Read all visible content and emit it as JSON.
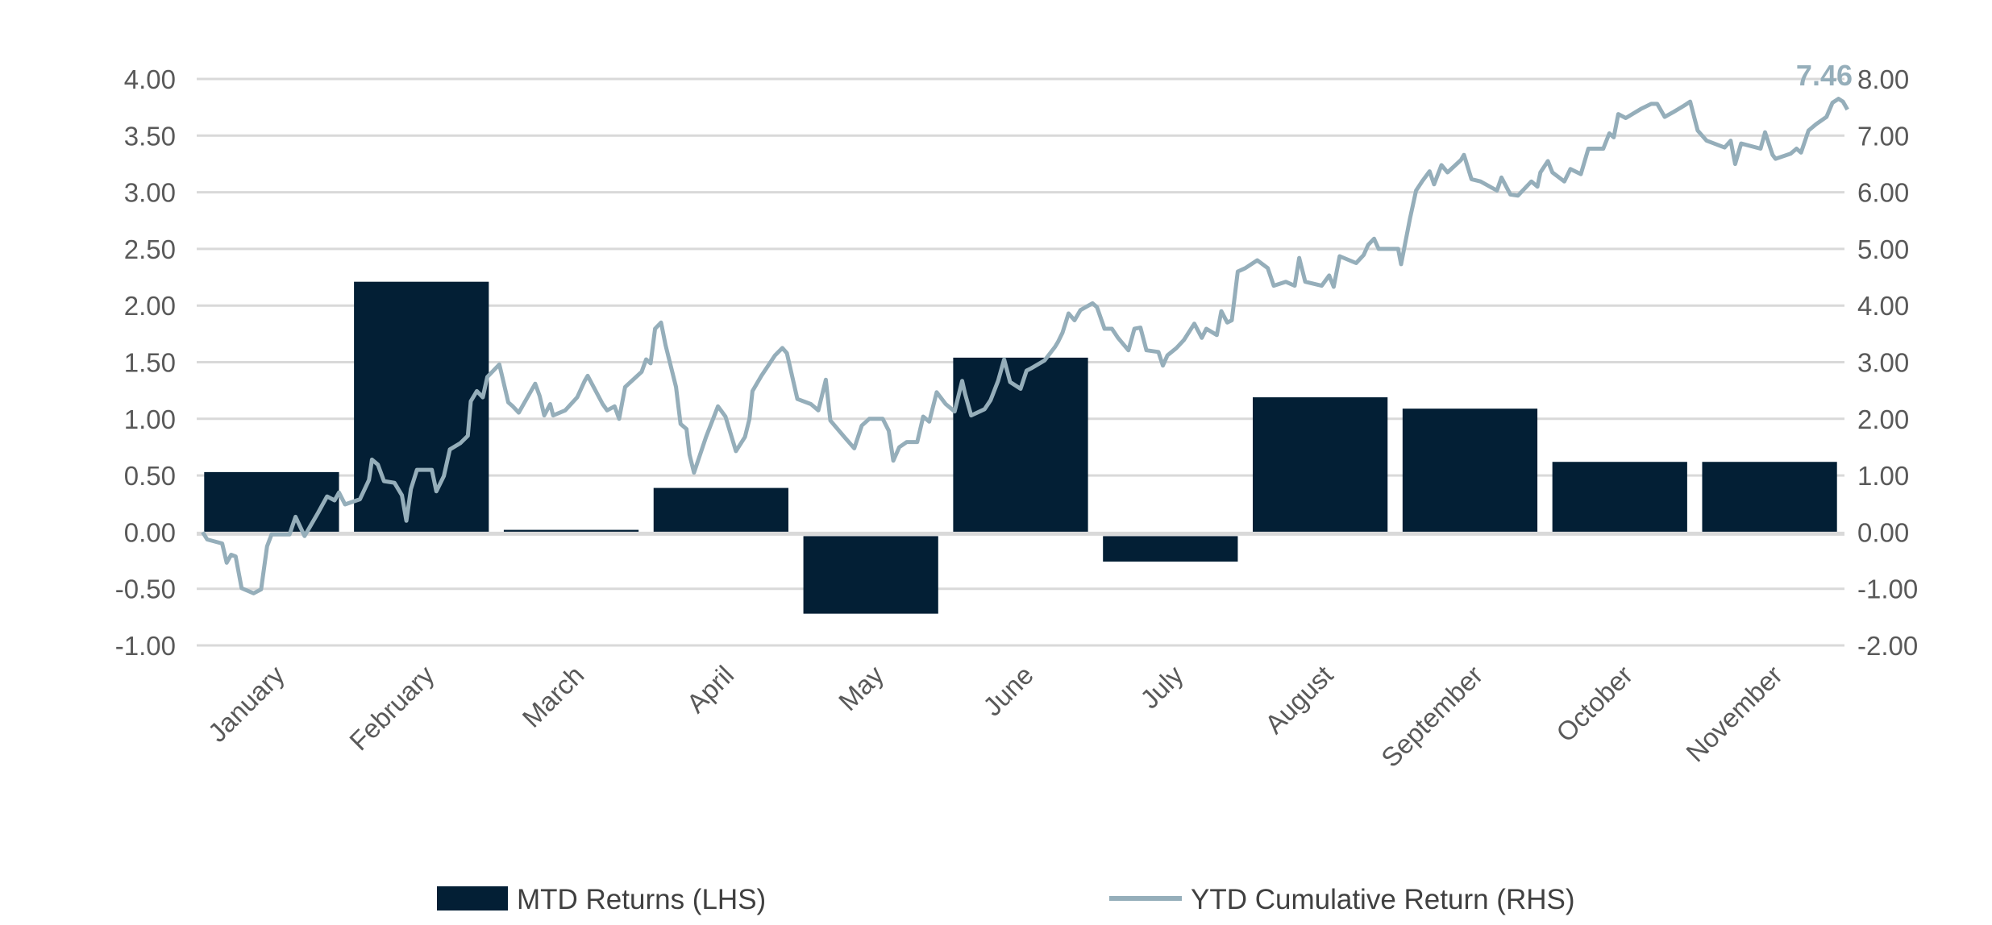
{
  "chart_data": {
    "type": "bar+line",
    "categories": [
      "January",
      "February",
      "March",
      "April",
      "May",
      "June",
      "July",
      "August",
      "September",
      "October",
      "November"
    ],
    "left_axis": {
      "ylim": [
        -1.0,
        4.0
      ],
      "ticks": [
        "4.00",
        "3.50",
        "3.00",
        "2.50",
        "2.00",
        "1.50",
        "1.00",
        "0.50",
        "0.00",
        "-0.50",
        "-1.00"
      ]
    },
    "right_axis": {
      "ylim": [
        -2.0,
        8.0
      ],
      "ticks": [
        "8.00",
        "7.00",
        "6.00",
        "5.00",
        "4.00",
        "3.00",
        "2.00",
        "1.00",
        "0.00",
        "-1.00",
        "-2.00"
      ]
    },
    "grid": true,
    "legend_placement": "bottom",
    "series": [
      {
        "name": "MTD Returns (LHS)",
        "type": "bar",
        "axis": "left",
        "color": "#031f35",
        "values": [
          0.53,
          2.21,
          0.02,
          0.39,
          -0.72,
          1.54,
          -0.26,
          1.19,
          1.09,
          0.62,
          0.62
        ]
      },
      {
        "name": "YTD Cumulative Return (RHS)",
        "type": "line",
        "axis": "right",
        "color": "#95aeba",
        "x_unit": "month position",
        "points": [
          [
            0.04,
            0
          ],
          [
            0.07,
            -0.13
          ],
          [
            0.17,
            -0.2
          ],
          [
            0.2,
            -0.54
          ],
          [
            0.23,
            -0.4
          ],
          [
            0.26,
            -0.43
          ],
          [
            0.3,
            -0.99
          ],
          [
            0.38,
            -1.08
          ],
          [
            0.43,
            -1.01
          ],
          [
            0.47,
            -0.25
          ],
          [
            0.5,
            -0.04
          ],
          [
            0.62,
            -0.04
          ],
          [
            0.66,
            0.27
          ],
          [
            0.72,
            -0.07
          ],
          [
            0.81,
            0.34
          ],
          [
            0.87,
            0.63
          ],
          [
            0.92,
            0.56
          ],
          [
            0.95,
            0.7
          ],
          [
            0.99,
            0.49
          ],
          [
            1.09,
            0.58
          ],
          [
            1.15,
            0.92
          ],
          [
            1.17,
            1.28
          ],
          [
            1.21,
            1.19
          ],
          [
            1.25,
            0.9
          ],
          [
            1.32,
            0.87
          ],
          [
            1.37,
            0.65
          ],
          [
            1.4,
            0.2
          ],
          [
            1.43,
            0.76
          ],
          [
            1.47,
            1.1
          ],
          [
            1.57,
            1.1
          ],
          [
            1.6,
            0.72
          ],
          [
            1.65,
            0.99
          ],
          [
            1.69,
            1.46
          ],
          [
            1.76,
            1.57
          ],
          [
            1.81,
            1.7
          ],
          [
            1.83,
            2.31
          ],
          [
            1.87,
            2.49
          ],
          [
            1.91,
            2.38
          ],
          [
            1.94,
            2.74
          ],
          [
            2.02,
            2.96
          ],
          [
            2.04,
            2.74
          ],
          [
            2.08,
            2.29
          ],
          [
            2.11,
            2.22
          ],
          [
            2.15,
            2.11
          ],
          [
            2.26,
            2.62
          ],
          [
            2.29,
            2.4
          ],
          [
            2.32,
            2.06
          ],
          [
            2.36,
            2.26
          ],
          [
            2.38,
            2.06
          ],
          [
            2.46,
            2.15
          ],
          [
            2.54,
            2.38
          ],
          [
            2.59,
            2.67
          ],
          [
            2.61,
            2.76
          ],
          [
            2.71,
            2.26
          ],
          [
            2.74,
            2.15
          ],
          [
            2.79,
            2.22
          ],
          [
            2.82,
            2.0
          ],
          [
            2.86,
            2.56
          ],
          [
            2.97,
            2.83
          ],
          [
            3.0,
            3.05
          ],
          [
            3.03,
            2.98
          ],
          [
            3.06,
            3.59
          ],
          [
            3.1,
            3.7
          ],
          [
            3.13,
            3.3
          ],
          [
            3.2,
            2.56
          ],
          [
            3.23,
            1.91
          ],
          [
            3.27,
            1.82
          ],
          [
            3.29,
            1.37
          ],
          [
            3.32,
            1.05
          ],
          [
            3.4,
            1.68
          ],
          [
            3.48,
            2.22
          ],
          [
            3.53,
            2.04
          ],
          [
            3.6,
            1.43
          ],
          [
            3.66,
            1.68
          ],
          [
            3.69,
            2.0
          ],
          [
            3.71,
            2.49
          ],
          [
            3.77,
            2.76
          ],
          [
            3.86,
            3.12
          ],
          [
            3.91,
            3.25
          ],
          [
            3.94,
            3.16
          ],
          [
            4.01,
            2.35
          ],
          [
            4.1,
            2.26
          ],
          [
            4.15,
            2.15
          ],
          [
            4.2,
            2.69
          ],
          [
            4.23,
            1.97
          ],
          [
            4.33,
            1.66
          ],
          [
            4.39,
            1.48
          ],
          [
            4.44,
            1.88
          ],
          [
            4.49,
            2.0
          ],
          [
            4.58,
            2.0
          ],
          [
            4.62,
            1.79
          ],
          [
            4.65,
            1.26
          ],
          [
            4.69,
            1.5
          ],
          [
            4.74,
            1.59
          ],
          [
            4.81,
            1.59
          ],
          [
            4.85,
            2.04
          ],
          [
            4.89,
            1.95
          ],
          [
            4.94,
            2.47
          ],
          [
            5.0,
            2.26
          ],
          [
            5.06,
            2.13
          ],
          [
            5.11,
            2.67
          ],
          [
            5.13,
            2.44
          ],
          [
            5.17,
            2.06
          ],
          [
            5.26,
            2.17
          ],
          [
            5.3,
            2.33
          ],
          [
            5.35,
            2.67
          ],
          [
            5.39,
            3.05
          ],
          [
            5.43,
            2.65
          ],
          [
            5.5,
            2.53
          ],
          [
            5.54,
            2.85
          ],
          [
            5.57,
            2.89
          ],
          [
            5.66,
            3.03
          ],
          [
            5.73,
            3.27
          ],
          [
            5.75,
            3.36
          ],
          [
            5.78,
            3.52
          ],
          [
            5.82,
            3.86
          ],
          [
            5.86,
            3.74
          ],
          [
            5.9,
            3.92
          ],
          [
            5.98,
            4.04
          ],
          [
            6.01,
            3.97
          ],
          [
            6.06,
            3.59
          ],
          [
            6.11,
            3.59
          ],
          [
            6.15,
            3.43
          ],
          [
            6.22,
            3.21
          ],
          [
            6.26,
            3.59
          ],
          [
            6.3,
            3.61
          ],
          [
            6.34,
            3.21
          ],
          [
            6.42,
            3.18
          ],
          [
            6.45,
            2.94
          ],
          [
            6.48,
            3.12
          ],
          [
            6.54,
            3.25
          ],
          [
            6.59,
            3.39
          ],
          [
            6.66,
            3.68
          ],
          [
            6.71,
            3.43
          ],
          [
            6.74,
            3.59
          ],
          [
            6.81,
            3.48
          ],
          [
            6.84,
            3.9
          ],
          [
            6.88,
            3.7
          ],
          [
            6.91,
            3.74
          ],
          [
            6.95,
            4.6
          ],
          [
            7.0,
            4.66
          ],
          [
            7.08,
            4.8
          ],
          [
            7.15,
            4.66
          ],
          [
            7.19,
            4.35
          ],
          [
            7.27,
            4.42
          ],
          [
            7.33,
            4.35
          ],
          [
            7.36,
            4.84
          ],
          [
            7.4,
            4.42
          ],
          [
            7.51,
            4.35
          ],
          [
            7.56,
            4.53
          ],
          [
            7.59,
            4.33
          ],
          [
            7.63,
            4.87
          ],
          [
            7.74,
            4.75
          ],
          [
            7.79,
            4.89
          ],
          [
            7.82,
            5.07
          ],
          [
            7.86,
            5.18
          ],
          [
            7.89,
            5.0
          ],
          [
            8.02,
            5.0
          ],
          [
            8.04,
            4.73
          ],
          [
            8.1,
            5.54
          ],
          [
            8.14,
            6.03
          ],
          [
            8.18,
            6.19
          ],
          [
            8.23,
            6.37
          ],
          [
            8.26,
            6.14
          ],
          [
            8.31,
            6.48
          ],
          [
            8.35,
            6.35
          ],
          [
            8.44,
            6.57
          ],
          [
            8.46,
            6.66
          ],
          [
            8.51,
            6.23
          ],
          [
            8.57,
            6.19
          ],
          [
            8.68,
            6.03
          ],
          [
            8.71,
            6.26
          ],
          [
            8.77,
            5.96
          ],
          [
            8.82,
            5.94
          ],
          [
            8.91,
            6.19
          ],
          [
            8.95,
            6.1
          ],
          [
            8.97,
            6.35
          ],
          [
            9.02,
            6.55
          ],
          [
            9.05,
            6.35
          ],
          [
            9.13,
            6.19
          ],
          [
            9.17,
            6.41
          ],
          [
            9.24,
            6.32
          ],
          [
            9.29,
            6.77
          ],
          [
            9.39,
            6.77
          ],
          [
            9.43,
            7.04
          ],
          [
            9.46,
            6.97
          ],
          [
            9.49,
            7.38
          ],
          [
            9.54,
            7.31
          ],
          [
            9.64,
            7.47
          ],
          [
            9.71,
            7.56
          ],
          [
            9.75,
            7.56
          ],
          [
            9.8,
            7.33
          ],
          [
            9.86,
            7.42
          ],
          [
            9.93,
            7.53
          ],
          [
            9.97,
            7.6
          ],
          [
            10.02,
            7.09
          ],
          [
            10.08,
            6.91
          ],
          [
            10.2,
            6.79
          ],
          [
            10.24,
            6.91
          ],
          [
            10.27,
            6.5
          ],
          [
            10.31,
            6.86
          ],
          [
            10.44,
            6.77
          ],
          [
            10.47,
            7.06
          ],
          [
            10.52,
            6.66
          ],
          [
            10.54,
            6.59
          ],
          [
            10.64,
            6.68
          ],
          [
            10.68,
            6.77
          ],
          [
            10.71,
            6.7
          ],
          [
            10.76,
            7.09
          ],
          [
            10.81,
            7.2
          ],
          [
            10.88,
            7.33
          ],
          [
            10.92,
            7.58
          ],
          [
            10.96,
            7.65
          ],
          [
            10.99,
            7.6
          ],
          [
            11.02,
            7.46
          ]
        ]
      }
    ],
    "annotations": [
      {
        "text": "7.46",
        "series": "YTD Cumulative Return (RHS)",
        "position": "end"
      }
    ],
    "legend": [
      {
        "label": "MTD Returns (LHS)",
        "marker": "box",
        "color": "#031f35"
      },
      {
        "label": "YTD Cumulative Return (RHS)",
        "marker": "line",
        "color": "#95aeba"
      }
    ],
    "colors": {
      "grid": "#d9d9d9",
      "text": "#595959"
    }
  }
}
